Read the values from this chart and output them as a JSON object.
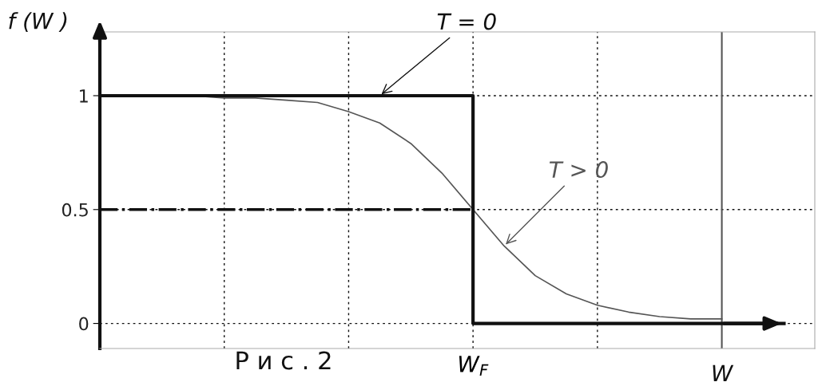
{
  "chart_data": {
    "type": "line",
    "ylabel": "f (W )",
    "xlabel": "W",
    "categories": [
      null,
      null,
      null,
      null,
      null,
      null,
      null,
      null,
      null,
      null,
      null,
      null,
      "W$_{F}$",
      null,
      null,
      null,
      null,
      null,
      null,
      null,
      null,
      null,
      null
    ],
    "series": [
      {
        "name": "T = 0",
        "type": "step",
        "color": "#111111",
        "values": [
          1,
          1,
          1,
          1,
          1,
          1,
          1,
          1,
          1,
          1,
          1,
          1,
          0,
          0,
          0,
          0,
          0,
          0,
          0,
          0,
          0,
          0,
          0
        ],
        "line_style": "solid"
      },
      {
        "name": "T > 0",
        "color": "#555555",
        "values": [
          1,
          1,
          1,
          1,
          0.99,
          0.99,
          0.98,
          0.97,
          0.93,
          0.88,
          0.79,
          0.66,
          0.5,
          0.34,
          0.21,
          0.13,
          0.08,
          0.05,
          0.03,
          0.02,
          0.02,
          null,
          null
        ],
        "line_style": "solid"
      },
      {
        "color": "#111111",
        "values": [
          0.5,
          0.5,
          0.5,
          0.5,
          0.5,
          0.5,
          0.5,
          0.5,
          0.5,
          0.5,
          0.5,
          0.5,
          0.5,
          null,
          null,
          null,
          null,
          null,
          null,
          null,
          null,
          null,
          null
        ],
        "line_style": "dashdot"
      }
    ],
    "ylim": [
      -0.11,
      1.28
    ],
    "yticks": [
      {
        "value": 0,
        "label": "0"
      },
      {
        "value": 0.5,
        "label": "0.5"
      },
      {
        "value": 1,
        "label": "1"
      }
    ],
    "grid": true,
    "annotations": [
      "Р и с . 2"
    ]
  }
}
